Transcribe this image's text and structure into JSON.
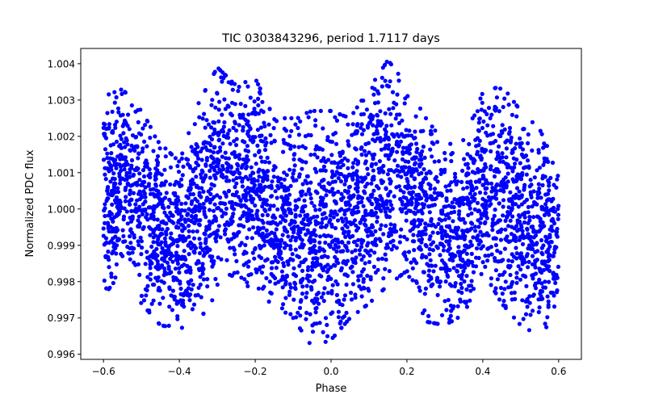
{
  "chart_data": {
    "type": "scatter",
    "title": "TIC 0303843296, period 1.7117 days",
    "xlabel": "Phase",
    "ylabel": "Normalized PDC flux",
    "xlim": [
      -0.66,
      0.66
    ],
    "ylim": [
      0.99586,
      1.00442
    ],
    "xticks": [
      -0.6,
      -0.4,
      -0.2,
      0.0,
      0.2,
      0.4,
      0.6
    ],
    "xtick_labels": [
      "−0.6",
      "−0.4",
      "−0.2",
      "0.0",
      "0.2",
      "0.4",
      "0.6"
    ],
    "yticks": [
      0.996,
      0.997,
      0.998,
      0.999,
      1.0,
      1.001,
      1.002,
      1.003,
      1.004
    ],
    "ytick_labels": [
      "0.996",
      "0.997",
      "0.998",
      "0.999",
      "1.000",
      "1.001",
      "1.002",
      "1.003",
      "1.004"
    ],
    "grid": false,
    "marker_color": "#0000ff",
    "series": [
      {
        "name": "flux",
        "note_binned_envelope": true,
        "phase": [
          -0.6,
          -0.55,
          -0.5,
          -0.45,
          -0.4,
          -0.35,
          -0.3,
          -0.25,
          -0.2,
          -0.15,
          -0.1,
          -0.05,
          0.0,
          0.05,
          0.1,
          0.15,
          0.2,
          0.25,
          0.3,
          0.35,
          0.4,
          0.45,
          0.5,
          0.55,
          0.6
        ],
        "upper": [
          1.0031,
          1.0033,
          1.0027,
          1.0018,
          1.0013,
          1.0029,
          1.0039,
          1.0034,
          1.0036,
          1.0025,
          1.0025,
          1.0027,
          1.0027,
          1.0025,
          1.0033,
          1.0041,
          1.0034,
          1.0025,
          1.0018,
          1.0019,
          1.0032,
          1.0034,
          1.0027,
          1.0022,
          1.001
        ],
        "lower": [
          0.9976,
          0.9983,
          0.9974,
          0.9968,
          0.9967,
          0.9969,
          0.9977,
          0.9983,
          0.9976,
          0.997,
          0.997,
          0.9962,
          0.9964,
          0.997,
          0.9974,
          0.9979,
          0.9983,
          0.9969,
          0.9968,
          0.9971,
          0.9983,
          0.9974,
          0.9968,
          0.9965,
          0.9972
        ]
      }
    ]
  }
}
